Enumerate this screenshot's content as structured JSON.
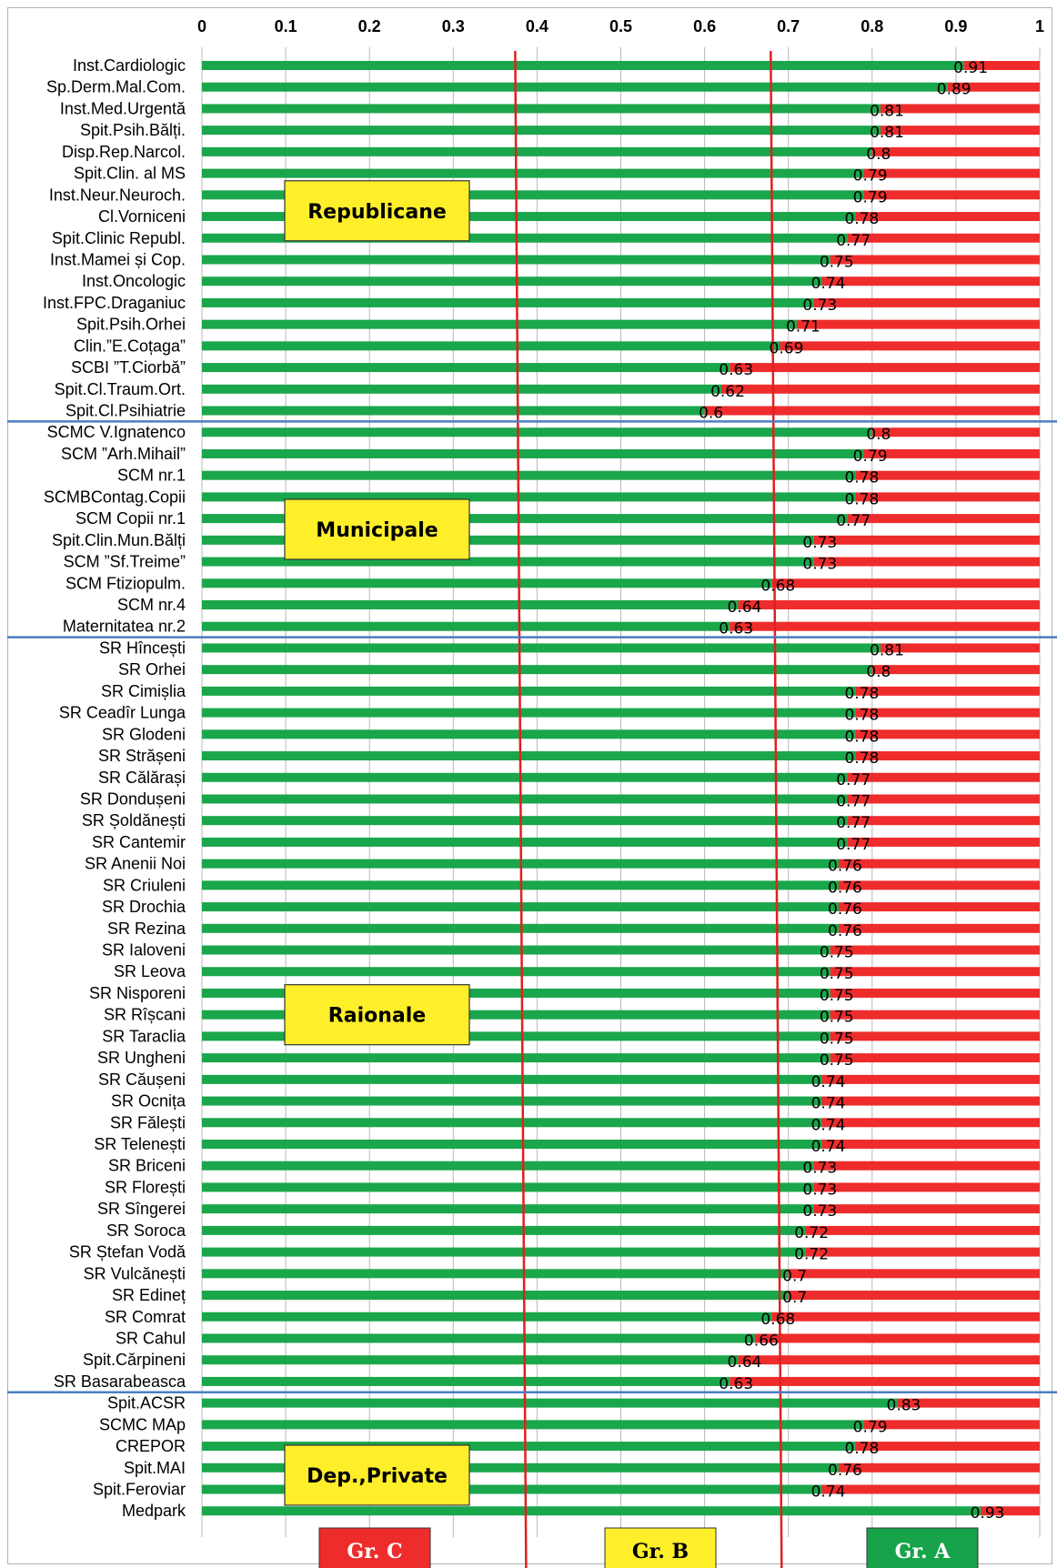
{
  "chart_data": {
    "type": "bar",
    "orientation": "horizontal",
    "stacked_to": 1,
    "xlim": [
      0,
      1
    ],
    "x_ticks": [
      "0",
      "0.1",
      "0.2",
      "0.3",
      "0.4",
      "0.5",
      "0.6",
      "0.7",
      "0.8",
      "0.9",
      "1"
    ],
    "colors": {
      "value": "#1aa64a",
      "remainder": "#ee2c2c",
      "group_line": "#4a7fc0",
      "threshold_line": "#e02020",
      "group_box": "#ffef2a"
    },
    "thresholds": [
      0.375,
      0.68
    ],
    "groups": [
      {
        "name": "Republicane",
        "items": [
          {
            "label": "Inst.Cardiologic",
            "value": 0.91
          },
          {
            "label": "Sp.Derm.Mal.Com.",
            "value": 0.89
          },
          {
            "label": "Inst.Med.Urgentă",
            "value": 0.81
          },
          {
            "label": "Spit.Psih.Bălți.",
            "value": 0.81
          },
          {
            "label": "Disp.Rep.Narcol.",
            "value": 0.8
          },
          {
            "label": "Spit.Clin. al MS",
            "value": 0.79
          },
          {
            "label": "Inst.Neur.Neuroch.",
            "value": 0.79
          },
          {
            "label": "Cl.Vorniceni",
            "value": 0.78
          },
          {
            "label": "Spit.Clinic Republ.",
            "value": 0.77
          },
          {
            "label": "Inst.Mamei și Cop.",
            "value": 0.75
          },
          {
            "label": "Inst.Oncologic",
            "value": 0.74
          },
          {
            "label": "Inst.FPC.Draganiuc",
            "value": 0.73
          },
          {
            "label": "Spit.Psih.Orhei",
            "value": 0.71
          },
          {
            "label": "Clin.”E.Coțaga”",
            "value": 0.69
          },
          {
            "label": "SCBI ”T.Ciorbă”",
            "value": 0.63
          },
          {
            "label": "Spit.Cl.Traum.Ort.",
            "value": 0.62
          },
          {
            "label": "Spit.Cl.Psihiatrie",
            "value": 0.6
          }
        ]
      },
      {
        "name": "Municipale",
        "items": [
          {
            "label": "SCMC V.Ignatenco",
            "value": 0.8
          },
          {
            "label": "SCM ”Arh.Mihail”",
            "value": 0.79
          },
          {
            "label": "SCM nr.1",
            "value": 0.78
          },
          {
            "label": "SCMBContag.Copii",
            "value": 0.78
          },
          {
            "label": "SCM Copii nr.1",
            "value": 0.77
          },
          {
            "label": "Spit.Clin.Mun.Bălți",
            "value": 0.73
          },
          {
            "label": "SCM ”Sf.Treime”",
            "value": 0.73
          },
          {
            "label": "SCM Ftiziopulm.",
            "value": 0.68
          },
          {
            "label": "SCM nr.4",
            "value": 0.64
          },
          {
            "label": "Maternitatea nr.2",
            "value": 0.63
          }
        ]
      },
      {
        "name": "Raionale",
        "items": [
          {
            "label": "SR Hîncești",
            "value": 0.81
          },
          {
            "label": "SR Orhei",
            "value": 0.8
          },
          {
            "label": "SR Cimișlia",
            "value": 0.78
          },
          {
            "label": "SR Ceadîr Lunga",
            "value": 0.78
          },
          {
            "label": "SR Glodeni",
            "value": 0.78
          },
          {
            "label": "SR Strășeni",
            "value": 0.78
          },
          {
            "label": "SR Călărași",
            "value": 0.77
          },
          {
            "label": "SR Dondușeni",
            "value": 0.77
          },
          {
            "label": "SR Șoldănești",
            "value": 0.77
          },
          {
            "label": "SR Cantemir",
            "value": 0.77
          },
          {
            "label": "SR Anenii Noi",
            "value": 0.76
          },
          {
            "label": "SR Criuleni",
            "value": 0.76
          },
          {
            "label": "SR Drochia",
            "value": 0.76
          },
          {
            "label": "SR Rezina",
            "value": 0.76
          },
          {
            "label": "SR Ialoveni",
            "value": 0.75
          },
          {
            "label": "SR Leova",
            "value": 0.75
          },
          {
            "label": "SR Nisporeni",
            "value": 0.75
          },
          {
            "label": "SR Rîșcani",
            "value": 0.75
          },
          {
            "label": "SR Taraclia",
            "value": 0.75
          },
          {
            "label": "SR Ungheni",
            "value": 0.75
          },
          {
            "label": "SR Căușeni",
            "value": 0.74
          },
          {
            "label": "SR Ocnița",
            "value": 0.74
          },
          {
            "label": "SR Fălești",
            "value": 0.74
          },
          {
            "label": "SR Telenești",
            "value": 0.74
          },
          {
            "label": "SR Briceni",
            "value": 0.73
          },
          {
            "label": "SR Florești",
            "value": 0.73
          },
          {
            "label": "SR Sîngerei",
            "value": 0.73
          },
          {
            "label": "SR Soroca",
            "value": 0.72
          },
          {
            "label": "SR Ștefan Vodă",
            "value": 0.72
          },
          {
            "label": "SR Vulcănești",
            "value": 0.7
          },
          {
            "label": "SR Edineț",
            "value": 0.7
          },
          {
            "label": "SR Comrat",
            "value": 0.68
          },
          {
            "label": "SR Cahul",
            "value": 0.66
          },
          {
            "label": "Spit.Cărpineni",
            "value": 0.64
          },
          {
            "label": "SR Basarabeasca",
            "value": 0.63
          }
        ]
      },
      {
        "name": "Dep.,Private",
        "items": [
          {
            "label": "Spit.ACSR",
            "value": 0.83
          },
          {
            "label": "SCMC MAp",
            "value": 0.79
          },
          {
            "label": "CREPOR",
            "value": 0.78
          },
          {
            "label": "Spit.MAI",
            "value": 0.76
          },
          {
            "label": "Spit.Feroviar",
            "value": 0.74
          },
          {
            "label": "Medpark",
            "value": 0.93
          }
        ]
      }
    ],
    "bands": [
      {
        "label": "Gr. C",
        "color": "#ee2c2c",
        "text_color": "#ffffff"
      },
      {
        "label": "Gr. B",
        "color": "#ffef2a",
        "text_color": "#000000"
      },
      {
        "label": "Gr. A",
        "color": "#16a34a",
        "text_color": "#ffffff"
      }
    ]
  }
}
